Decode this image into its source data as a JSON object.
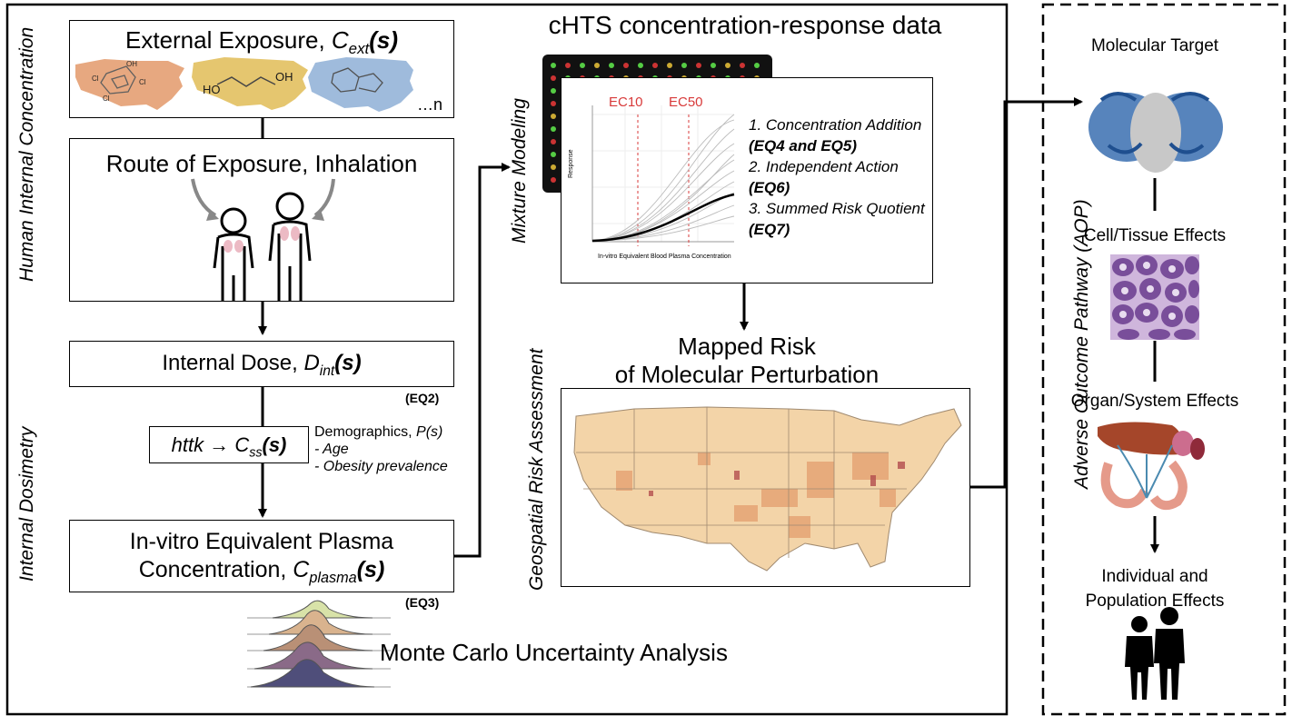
{
  "left_panel": {
    "vertical_label_top": "Human Internal Concentration",
    "vertical_label_bottom": "Internal Dosimetry",
    "external_exposure": {
      "label": "External Exposure, ",
      "var": "C",
      "sub": "ext",
      "arg": "(s)",
      "ellipsis": "…n"
    },
    "route": {
      "label": "Route of Exposure, Inhalation"
    },
    "internal_dose": {
      "label": "Internal Dose, ",
      "var": "D",
      "sub": "int",
      "arg": "(s)",
      "eq": "(EQ2)"
    },
    "httk": {
      "label": "httk →",
      "var": "C",
      "sub": "ss",
      "arg": "(s)"
    },
    "demographics": {
      "title": "Demographics, ",
      "var": "P(s)",
      "items": [
        "- Age",
        "- Obesity prevalence"
      ]
    },
    "ivive": {
      "line1": "In-vitro Equivalent Plasma",
      "line2": "Concentration, ",
      "var": "C",
      "sub": "plasma",
      "arg": "(s)",
      "eq": "(EQ3)"
    },
    "monte_carlo": "Monte Carlo Uncertainty Analysis"
  },
  "center_panel": {
    "title": "cHTS concentration-response data",
    "vertical_label_top": "Mixture Modeling",
    "vertical_label_bottom": "Geospatial Risk Assessment",
    "ec_labels": [
      "EC10",
      "EC50"
    ],
    "plot_axis_x": "In-vitro Equivalent Blood Plasma Concentration",
    "plot_axis_y": "Response",
    "methods": [
      {
        "num": "1. ",
        "name": "Concentration Addition",
        "eq": "(EQ4 and EQ5)"
      },
      {
        "num": "2. ",
        "name": "Independent Action",
        "eq": "(EQ6)"
      },
      {
        "num": "3. ",
        "name": "Summed Risk Quotient",
        "eq": "(EQ7)"
      }
    ],
    "mapped_risk_line1": "Mapped Risk",
    "mapped_risk_line2": "of Molecular Perturbation"
  },
  "right_panel": {
    "vertical_label": "Adverse Outcome Pathway (AOP)",
    "steps": [
      "Molecular Target",
      "Cell/Tissue Effects",
      "Organ/System Effects"
    ],
    "final_line1": "Individual and",
    "final_line2": "Population Effects"
  },
  "colors": {
    "map_orange": "#e39a6a",
    "map_yellow": "#e3c060",
    "map_blue": "#8fb0d6",
    "protein_blue": "#3a6fb0",
    "tissue_purple": "#6b3d8f",
    "threshold_red": "#d83a3a"
  }
}
